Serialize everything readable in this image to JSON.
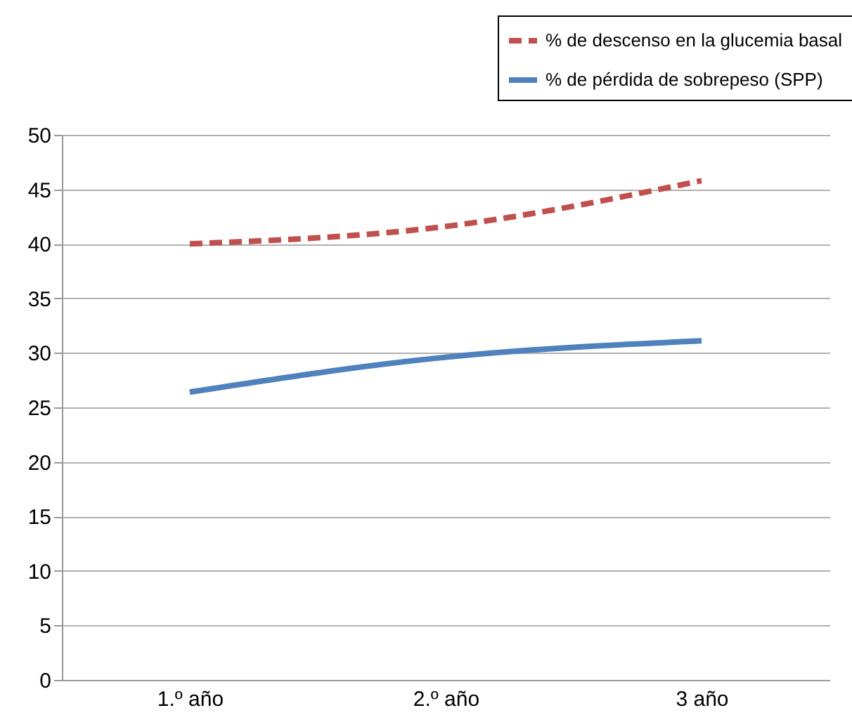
{
  "chart_data": {
    "type": "line",
    "categories": [
      "1.º año",
      "2.º año",
      "3 año"
    ],
    "series": [
      {
        "name": "% de descenso en la glucemia basal",
        "color": "#c0504d",
        "values": [
          40,
          41.6,
          45.8
        ],
        "line_style": "dashed"
      },
      {
        "name": "% de pérdida de sobrepeso (SPP)",
        "color": "#4f81bd",
        "values": [
          26.4,
          29.6,
          31.1
        ],
        "line_style": "solid"
      }
    ],
    "ylim": [
      0,
      50
    ],
    "yticks": [
      0,
      5,
      10,
      15,
      20,
      25,
      30,
      35,
      40,
      45,
      50
    ],
    "grid": "y",
    "legend": "top right",
    "marker": "none"
  }
}
